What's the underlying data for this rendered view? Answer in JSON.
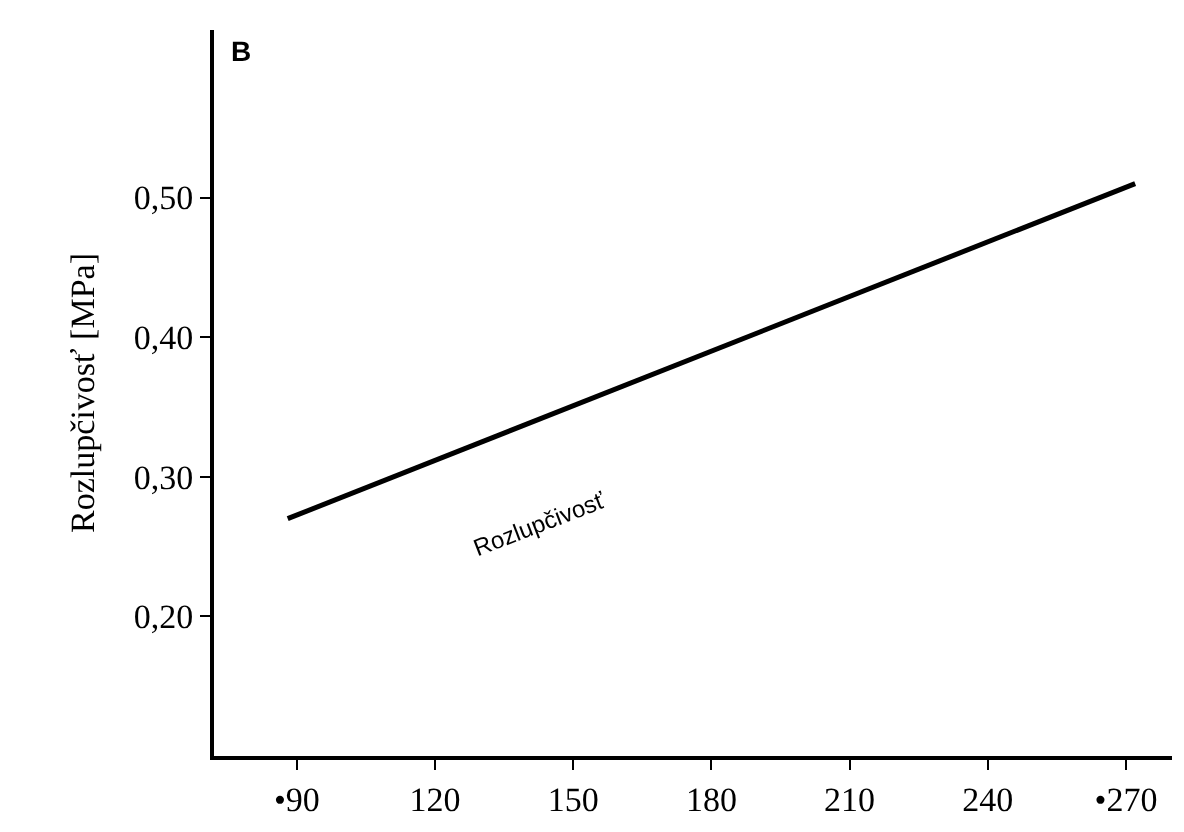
{
  "chart_data": {
    "type": "line",
    "title": "B",
    "ylabel": "Rozlupčivosť [MPa]",
    "series": [
      {
        "color": "#000000",
        "x": [
          88,
          272
        ],
        "values": [
          0.27,
          0.51
        ]
      }
    ],
    "xlim": [
      72,
      280
    ],
    "ylim": [
      0.1,
      0.62
    ],
    "xticks": [
      {
        "value": 90,
        "label": "•90"
      },
      120,
      150,
      180,
      210,
      240,
      {
        "value": 270,
        "label": "•270"
      }
    ],
    "yticks": [
      {
        "value": 0.2,
        "label": "0,20"
      },
      {
        "value": 0.3,
        "label": "0,30"
      },
      {
        "value": 0.4,
        "label": "0,40"
      },
      {
        "value": 0.5,
        "label": "0,50"
      }
    ],
    "annotations": [
      "Rozlupčivosť"
    ],
    "marker": "none",
    "line_style": "solid"
  }
}
